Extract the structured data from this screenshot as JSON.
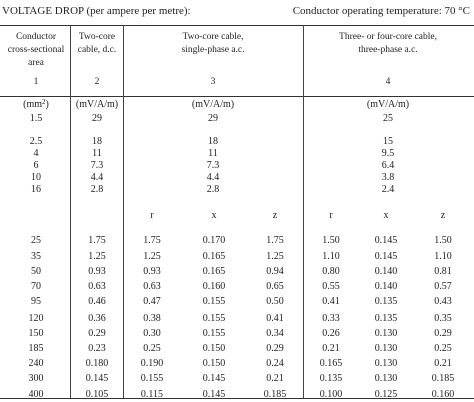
{
  "header": {
    "left": "VOLTAGE DROP (per ampere per metre):",
    "right": "Conductor operating temperature: 70 °C"
  },
  "columns": [
    {
      "lines": [
        "Conductor",
        "cross-sectional",
        "area"
      ],
      "number": "1"
    },
    {
      "lines": [
        "Two-core",
        "cable, d.c."
      ],
      "number": "2"
    },
    {
      "lines": [
        "Two-core cable,",
        "single-phase a.c."
      ],
      "number": "3"
    },
    {
      "lines": [
        "Three- or four-core cable,",
        "three-phase a.c."
      ],
      "number": "4"
    }
  ],
  "units": {
    "area_base": "(mm",
    "area_sup": "2",
    "area_close": ")",
    "c2": "(mV/A/m)",
    "c3": "(mV/A/m)",
    "c4": "(mV/A/m)"
  },
  "single_rows": [
    {
      "area": "1.5",
      "dc": "29",
      "single": "29",
      "three": "25"
    },
    {
      "area": "2.5",
      "dc": "18",
      "single": "18",
      "three": "15"
    },
    {
      "area": "4",
      "dc": "11",
      "single": "11",
      "three": "9.5"
    },
    {
      "area": "6",
      "dc": "7.3",
      "single": "7.3",
      "three": "6.4"
    },
    {
      "area": "10",
      "dc": "4.4",
      "single": "4.4",
      "three": "3.8"
    },
    {
      "area": "16",
      "dc": "2.8",
      "single": "2.8",
      "three": "2.4"
    }
  ],
  "sub_headers": {
    "r1": "r",
    "x1": "x",
    "z1": "z",
    "r2": "r",
    "x2": "x",
    "z2": "z"
  },
  "rxz_rows": [
    {
      "area": "25",
      "dc": "1.75",
      "r1": "1.75",
      "x1": "0.170",
      "z1": "1.75",
      "r2": "1.50",
      "x2": "0.145",
      "z2": "1.50"
    },
    {
      "area": "35",
      "dc": "1.25",
      "r1": "1.25",
      "x1": "0.165",
      "z1": "1.25",
      "r2": "1.10",
      "x2": "0.145",
      "z2": "1.10"
    },
    {
      "area": "50",
      "dc": "0.93",
      "r1": "0.93",
      "x1": "0.165",
      "z1": "0.94",
      "r2": "0.80",
      "x2": "0.140",
      "z2": "0.81"
    },
    {
      "area": "70",
      "dc": "0.63",
      "r1": "0.63",
      "x1": "0.160",
      "z1": "0.65",
      "r2": "0.55",
      "x2": "0.140",
      "z2": "0.57"
    },
    {
      "area": "95",
      "dc": "0.46",
      "r1": "0.47",
      "x1": "0.155",
      "z1": "0.50",
      "r2": "0.41",
      "x2": "0.135",
      "z2": "0.43"
    },
    {
      "area": "120",
      "dc": "0.36",
      "r1": "0.38",
      "x1": "0.155",
      "z1": "0.41",
      "r2": "0.33",
      "x2": "0.135",
      "z2": "0.35"
    },
    {
      "area": "150",
      "dc": "0.29",
      "r1": "0.30",
      "x1": "0.155",
      "z1": "0.34",
      "r2": "0.26",
      "x2": "0.130",
      "z2": "0.29"
    },
    {
      "area": "185",
      "dc": "0.23",
      "r1": "0.25",
      "x1": "0.150",
      "z1": "0.29",
      "r2": "0.21",
      "x2": "0.130",
      "z2": "0.25"
    },
    {
      "area": "240",
      "dc": "0.180",
      "r1": "0.190",
      "x1": "0.150",
      "z1": "0.24",
      "r2": "0.165",
      "x2": "0.130",
      "z2": "0.21"
    },
    {
      "area": "300",
      "dc": "0.145",
      "r1": "0.155",
      "x1": "0.145",
      "z1": "0.21",
      "r2": "0.135",
      "x2": "0.130",
      "z2": "0.185"
    },
    {
      "area": "400",
      "dc": "0.105",
      "r1": "0.115",
      "x1": "0.145",
      "z1": "0.185",
      "r2": "0.100",
      "x2": "0.125",
      "z2": "0.160"
    }
  ]
}
